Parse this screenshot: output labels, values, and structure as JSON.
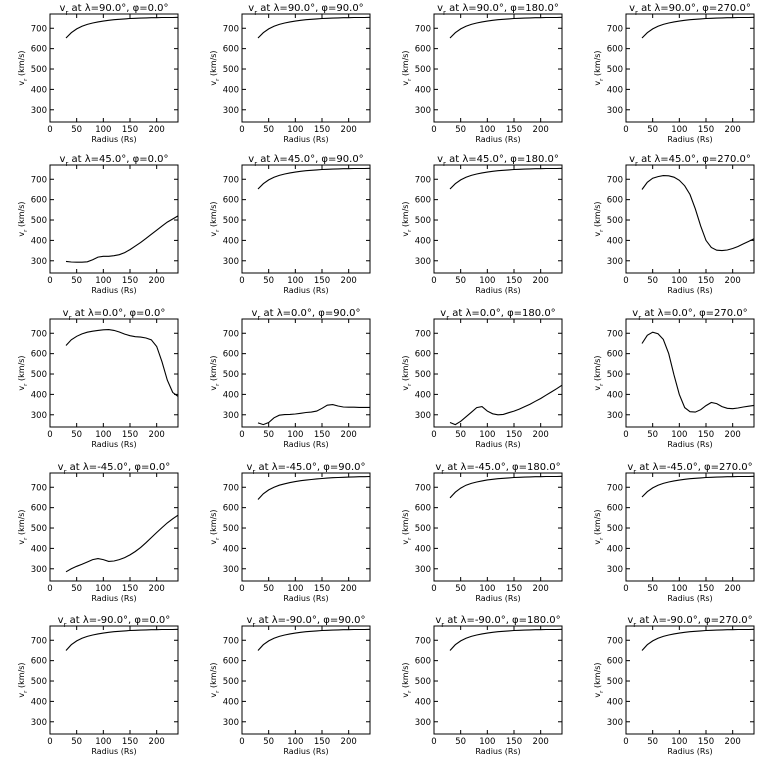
{
  "figure": {
    "rows": 5,
    "cols": 4,
    "xlabel": "Radius (Rs)",
    "ylabel": "vr (km/s)",
    "xlim": [
      0,
      240
    ],
    "ylim": [
      240,
      770
    ],
    "xticks": [
      0,
      50,
      100,
      150,
      200
    ],
    "yticks": [
      300,
      400,
      500,
      600,
      700
    ]
  },
  "chart_data": [
    {
      "type": "line",
      "title": "vr at λ=90.0°, φ=0.0°",
      "xlabel": "Radius (Rs)",
      "ylabel": "vr (km/s)",
      "xlim": [
        0,
        240
      ],
      "ylim": [
        240,
        770
      ],
      "grid": false,
      "x": [
        30,
        40,
        50,
        60,
        70,
        80,
        90,
        100,
        110,
        120,
        130,
        140,
        150,
        160,
        170,
        180,
        190,
        200,
        210,
        220,
        230,
        240
      ],
      "y": [
        652,
        678,
        697,
        710,
        719,
        726,
        731,
        735,
        739,
        742,
        744,
        746,
        748,
        749,
        750,
        751,
        752,
        752,
        753,
        753,
        753,
        754
      ]
    },
    {
      "type": "line",
      "title": "vr at λ=90.0°, φ=90.0°",
      "xlabel": "Radius (Rs)",
      "ylabel": "vr (km/s)",
      "xlim": [
        0,
        240
      ],
      "ylim": [
        240,
        770
      ],
      "grid": false,
      "x": [
        30,
        40,
        50,
        60,
        70,
        80,
        90,
        100,
        110,
        120,
        130,
        140,
        150,
        160,
        170,
        180,
        190,
        200,
        210,
        220,
        230,
        240
      ],
      "y": [
        652,
        678,
        697,
        710,
        719,
        726,
        731,
        735,
        739,
        742,
        744,
        746,
        748,
        749,
        750,
        751,
        752,
        752,
        753,
        753,
        753,
        754
      ]
    },
    {
      "type": "line",
      "title": "vr at λ=90.0°, φ=180.0°",
      "xlabel": "Radius (Rs)",
      "ylabel": "vr (km/s)",
      "xlim": [
        0,
        240
      ],
      "ylim": [
        240,
        770
      ],
      "grid": false,
      "x": [
        30,
        40,
        50,
        60,
        70,
        80,
        90,
        100,
        110,
        120,
        130,
        140,
        150,
        160,
        170,
        180,
        190,
        200,
        210,
        220,
        230,
        240
      ],
      "y": [
        652,
        678,
        697,
        710,
        719,
        726,
        731,
        735,
        739,
        742,
        744,
        746,
        748,
        749,
        750,
        751,
        752,
        752,
        753,
        753,
        753,
        754
      ]
    },
    {
      "type": "line",
      "title": "vr at λ=90.0°, φ=270.0°",
      "xlabel": "Radius (Rs)",
      "ylabel": "vr (km/s)",
      "xlim": [
        0,
        240
      ],
      "ylim": [
        240,
        770
      ],
      "grid": false,
      "x": [
        30,
        40,
        50,
        60,
        70,
        80,
        90,
        100,
        110,
        120,
        130,
        140,
        150,
        160,
        170,
        180,
        190,
        200,
        210,
        220,
        230,
        240
      ],
      "y": [
        652,
        678,
        697,
        710,
        719,
        726,
        731,
        735,
        739,
        742,
        744,
        746,
        748,
        749,
        750,
        751,
        752,
        752,
        753,
        753,
        753,
        754
      ]
    },
    {
      "type": "line",
      "title": "vr at λ=45.0°, φ=0.0°",
      "xlabel": "Radius (Rs)",
      "ylabel": "vr (km/s)",
      "xlim": [
        0,
        240
      ],
      "ylim": [
        240,
        770
      ],
      "grid": false,
      "x": [
        30,
        40,
        50,
        60,
        70,
        80,
        90,
        100,
        110,
        120,
        130,
        140,
        150,
        160,
        170,
        180,
        190,
        200,
        210,
        220,
        230,
        240
      ],
      "y": [
        297,
        294,
        293,
        293,
        295,
        305,
        318,
        322,
        322,
        325,
        330,
        340,
        355,
        372,
        390,
        410,
        430,
        450,
        470,
        490,
        505,
        520
      ]
    },
    {
      "type": "line",
      "title": "vr at λ=45.0°, φ=90.0°",
      "xlabel": "Radius (Rs)",
      "ylabel": "vr (km/s)",
      "xlim": [
        0,
        240
      ],
      "ylim": [
        240,
        770
      ],
      "grid": false,
      "x": [
        30,
        40,
        50,
        60,
        70,
        80,
        90,
        100,
        110,
        120,
        130,
        140,
        150,
        160,
        170,
        180,
        190,
        200,
        210,
        220,
        230,
        240
      ],
      "y": [
        652,
        678,
        697,
        710,
        719,
        726,
        731,
        735,
        739,
        742,
        744,
        746,
        748,
        749,
        750,
        751,
        752,
        752,
        753,
        753,
        753,
        754
      ]
    },
    {
      "type": "line",
      "title": "vr at λ=45.0°, φ=180.0°",
      "xlabel": "Radius (Rs)",
      "ylabel": "vr (km/s)",
      "xlim": [
        0,
        240
      ],
      "ylim": [
        240,
        770
      ],
      "grid": false,
      "x": [
        30,
        40,
        50,
        60,
        70,
        80,
        90,
        100,
        110,
        120,
        130,
        140,
        150,
        160,
        170,
        180,
        190,
        200,
        210,
        220,
        230,
        240
      ],
      "y": [
        652,
        678,
        697,
        710,
        719,
        726,
        731,
        735,
        739,
        742,
        744,
        746,
        748,
        749,
        750,
        751,
        752,
        752,
        753,
        753,
        753,
        754
      ]
    },
    {
      "type": "line",
      "title": "vr at λ=45.0°, φ=270.0°",
      "xlabel": "Radius (Rs)",
      "ylabel": "vr (km/s)",
      "xlim": [
        0,
        240
      ],
      "ylim": [
        240,
        770
      ],
      "grid": false,
      "x": [
        30,
        40,
        50,
        60,
        70,
        80,
        90,
        100,
        110,
        120,
        130,
        140,
        150,
        160,
        170,
        180,
        190,
        200,
        210,
        220,
        230,
        240
      ],
      "y": [
        650,
        685,
        705,
        713,
        718,
        717,
        710,
        695,
        668,
        625,
        555,
        470,
        400,
        365,
        352,
        350,
        353,
        360,
        370,
        383,
        395,
        408
      ]
    },
    {
      "type": "line",
      "title": "vr at λ=0.0°, φ=0.0°",
      "xlabel": "Radius (Rs)",
      "ylabel": "vr (km/s)",
      "xlim": [
        0,
        240
      ],
      "ylim": [
        240,
        770
      ],
      "grid": false,
      "x": [
        30,
        40,
        50,
        60,
        70,
        80,
        90,
        100,
        110,
        120,
        130,
        140,
        150,
        160,
        170,
        180,
        190,
        200,
        210,
        220,
        230,
        240
      ],
      "y": [
        640,
        668,
        685,
        697,
        705,
        710,
        714,
        717,
        718,
        714,
        706,
        696,
        688,
        683,
        681,
        677,
        668,
        635,
        560,
        470,
        410,
        390
      ]
    },
    {
      "type": "line",
      "title": "vr at λ=0.0°, φ=90.0°",
      "xlabel": "Radius (Rs)",
      "ylabel": "vr (km/s)",
      "xlim": [
        0,
        240
      ],
      "ylim": [
        240,
        770
      ],
      "grid": false,
      "x": [
        30,
        40,
        50,
        60,
        70,
        80,
        90,
        100,
        110,
        120,
        130,
        140,
        150,
        160,
        170,
        180,
        190,
        200,
        210,
        220,
        230,
        240
      ],
      "y": [
        260,
        252,
        262,
        285,
        298,
        301,
        302,
        304,
        307,
        311,
        313,
        318,
        332,
        347,
        350,
        343,
        338,
        337,
        337,
        336,
        336,
        336
      ]
    },
    {
      "type": "line",
      "title": "vr at λ=0.0°, φ=180.0°",
      "xlabel": "Radius (Rs)",
      "ylabel": "vr (km/s)",
      "xlim": [
        0,
        240
      ],
      "ylim": [
        240,
        770
      ],
      "grid": false,
      "x": [
        30,
        40,
        50,
        60,
        70,
        80,
        90,
        100,
        110,
        120,
        130,
        140,
        150,
        160,
        170,
        180,
        190,
        200,
        210,
        220,
        230,
        240
      ],
      "y": [
        262,
        252,
        268,
        290,
        312,
        335,
        340,
        318,
        305,
        300,
        302,
        310,
        318,
        328,
        340,
        352,
        366,
        380,
        396,
        412,
        428,
        445
      ]
    },
    {
      "type": "line",
      "title": "vr at λ=0.0°, φ=270.0°",
      "xlabel": "Radius (Rs)",
      "ylabel": "vr (km/s)",
      "xlim": [
        0,
        240
      ],
      "ylim": [
        240,
        770
      ],
      "grid": false,
      "x": [
        30,
        40,
        50,
        60,
        70,
        80,
        90,
        100,
        110,
        120,
        130,
        140,
        150,
        160,
        170,
        180,
        190,
        200,
        210,
        220,
        230,
        240
      ],
      "y": [
        650,
        690,
        705,
        698,
        670,
        600,
        495,
        400,
        335,
        315,
        313,
        325,
        345,
        360,
        355,
        340,
        332,
        330,
        333,
        338,
        342,
        346
      ]
    },
    {
      "type": "line",
      "title": "vr at λ=-45.0°, φ=0.0°",
      "xlabel": "Radius (Rs)",
      "ylabel": "vr (km/s)",
      "xlim": [
        0,
        240
      ],
      "ylim": [
        240,
        770
      ],
      "grid": false,
      "x": [
        30,
        40,
        50,
        60,
        70,
        80,
        90,
        100,
        110,
        120,
        130,
        140,
        150,
        160,
        170,
        180,
        190,
        200,
        210,
        220,
        230,
        240
      ],
      "y": [
        285,
        300,
        312,
        322,
        333,
        345,
        350,
        345,
        336,
        338,
        345,
        355,
        368,
        385,
        405,
        428,
        453,
        478,
        502,
        525,
        545,
        563
      ]
    },
    {
      "type": "line",
      "title": "vr at λ=-45.0°, φ=90.0°",
      "xlabel": "Radius (Rs)",
      "ylabel": "vr (km/s)",
      "xlim": [
        0,
        240
      ],
      "ylim": [
        240,
        770
      ],
      "grid": false,
      "x": [
        30,
        40,
        50,
        60,
        70,
        80,
        90,
        100,
        110,
        120,
        130,
        140,
        150,
        160,
        170,
        180,
        190,
        200,
        210,
        220,
        230,
        240
      ],
      "y": [
        640,
        668,
        687,
        700,
        710,
        717,
        723,
        728,
        732,
        735,
        738,
        741,
        743,
        745,
        747,
        748,
        749,
        750,
        751,
        752,
        752,
        753
      ]
    },
    {
      "type": "line",
      "title": "vr at λ=-45.0°, φ=180.0°",
      "xlabel": "Radius (Rs)",
      "ylabel": "vr (km/s)",
      "xlim": [
        0,
        240
      ],
      "ylim": [
        240,
        770
      ],
      "grid": false,
      "x": [
        30,
        40,
        50,
        60,
        70,
        80,
        90,
        100,
        110,
        120,
        130,
        140,
        150,
        160,
        170,
        180,
        190,
        200,
        210,
        220,
        230,
        240
      ],
      "y": [
        648,
        676,
        696,
        710,
        719,
        726,
        731,
        736,
        739,
        742,
        744,
        746,
        748,
        749,
        750,
        751,
        752,
        752,
        753,
        753,
        753,
        754
      ]
    },
    {
      "type": "line",
      "title": "vr at λ=-45.0°, φ=270.0°",
      "xlabel": "Radius (Rs)",
      "ylabel": "vr (km/s)",
      "xlim": [
        0,
        240
      ],
      "ylim": [
        240,
        770
      ],
      "grid": false,
      "x": [
        30,
        40,
        50,
        60,
        70,
        80,
        90,
        100,
        110,
        120,
        130,
        140,
        150,
        160,
        170,
        180,
        190,
        200,
        210,
        220,
        230,
        240
      ],
      "y": [
        652,
        678,
        697,
        710,
        719,
        726,
        731,
        735,
        739,
        742,
        744,
        746,
        748,
        749,
        750,
        751,
        752,
        752,
        753,
        753,
        753,
        754
      ]
    },
    {
      "type": "line",
      "title": "vr at λ=-90.0°, φ=0.0°",
      "xlabel": "Radius (Rs)",
      "ylabel": "vr (km/s)",
      "xlim": [
        0,
        240
      ],
      "ylim": [
        240,
        770
      ],
      "grid": false,
      "x": [
        30,
        40,
        50,
        60,
        70,
        80,
        90,
        100,
        110,
        120,
        130,
        140,
        150,
        160,
        170,
        180,
        190,
        200,
        210,
        220,
        230,
        240
      ],
      "y": [
        650,
        678,
        697,
        710,
        719,
        726,
        731,
        735,
        739,
        742,
        744,
        746,
        748,
        749,
        750,
        751,
        752,
        752,
        753,
        753,
        753,
        754
      ]
    },
    {
      "type": "line",
      "title": "vr at λ=-90.0°, φ=90.0°",
      "xlabel": "Radius (Rs)",
      "ylabel": "vr (km/s)",
      "xlim": [
        0,
        240
      ],
      "ylim": [
        240,
        770
      ],
      "grid": false,
      "x": [
        30,
        40,
        50,
        60,
        70,
        80,
        90,
        100,
        110,
        120,
        130,
        140,
        150,
        160,
        170,
        180,
        190,
        200,
        210,
        220,
        230,
        240
      ],
      "y": [
        650,
        678,
        697,
        710,
        719,
        726,
        731,
        735,
        739,
        742,
        744,
        746,
        748,
        749,
        750,
        751,
        752,
        752,
        753,
        753,
        753,
        754
      ]
    },
    {
      "type": "line",
      "title": "vr at λ=-90.0°, φ=180.0°",
      "xlabel": "Radius (Rs)",
      "ylabel": "vr (km/s)",
      "xlim": [
        0,
        240
      ],
      "ylim": [
        240,
        770
      ],
      "grid": false,
      "x": [
        30,
        40,
        50,
        60,
        70,
        80,
        90,
        100,
        110,
        120,
        130,
        140,
        150,
        160,
        170,
        180,
        190,
        200,
        210,
        220,
        230,
        240
      ],
      "y": [
        650,
        678,
        697,
        710,
        719,
        726,
        731,
        735,
        739,
        742,
        744,
        746,
        748,
        749,
        750,
        751,
        752,
        752,
        753,
        753,
        753,
        754
      ]
    },
    {
      "type": "line",
      "title": "vr at λ=-90.0°, φ=270.0°",
      "xlabel": "Radius (Rs)",
      "ylabel": "vr (km/s)",
      "xlim": [
        0,
        240
      ],
      "ylim": [
        240,
        770
      ],
      "grid": false,
      "x": [
        30,
        40,
        50,
        60,
        70,
        80,
        90,
        100,
        110,
        120,
        130,
        140,
        150,
        160,
        170,
        180,
        190,
        200,
        210,
        220,
        230,
        240
      ],
      "y": [
        650,
        678,
        697,
        710,
        719,
        726,
        731,
        735,
        739,
        742,
        744,
        746,
        748,
        749,
        750,
        751,
        752,
        752,
        753,
        753,
        753,
        754
      ]
    }
  ]
}
